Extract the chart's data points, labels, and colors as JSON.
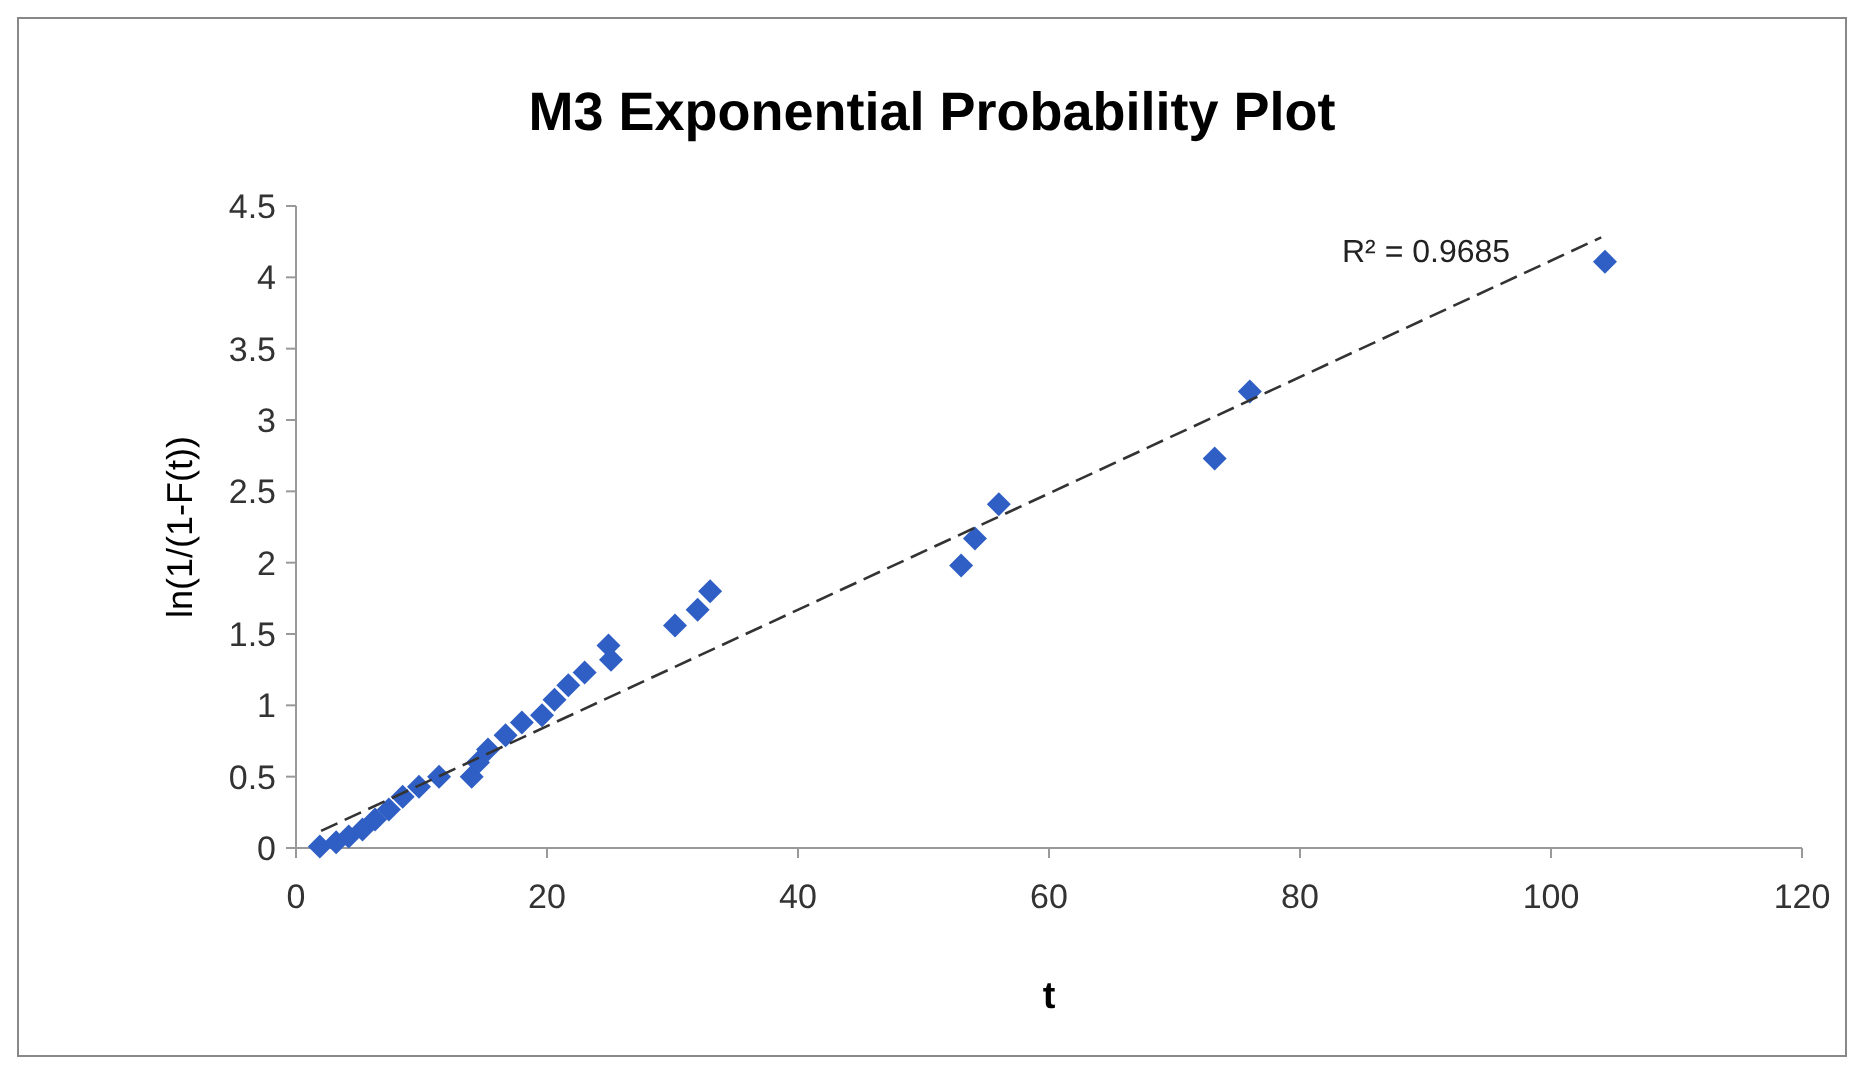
{
  "chart_data": {
    "type": "scatter",
    "title": "M3 Exponential Probability Plot",
    "xlabel": "t",
    "ylabel": "ln(1/(1-F(t))",
    "xlim": [
      0,
      120
    ],
    "xticks": [
      0,
      20,
      40,
      60,
      80,
      100,
      120
    ],
    "ylim": [
      0,
      4.5
    ],
    "yticks": [
      0,
      0.5,
      1,
      1.5,
      2,
      2.5,
      3,
      3.5,
      4,
      4.5
    ],
    "grid": false,
    "marker": "diamond",
    "series": [
      {
        "color": "#2f5fc4",
        "x": [
          1.9,
          3.2,
          4.2,
          5.3,
          6.3,
          7.4,
          8.5,
          9.8,
          11.4,
          14,
          14.5,
          15.3,
          16.7,
          18,
          19.6,
          20.6,
          21.7,
          23,
          24.9,
          25.1,
          30.2,
          32,
          33,
          53,
          54.1,
          56,
          73.2,
          76,
          104.3
        ],
        "values": [
          0.01,
          0.04,
          0.08,
          0.13,
          0.2,
          0.27,
          0.36,
          0.43,
          0.5,
          0.5,
          0.6,
          0.69,
          0.79,
          0.88,
          0.93,
          1.04,
          1.14,
          1.23,
          1.42,
          1.32,
          1.56,
          1.67,
          1.8,
          1.98,
          2.17,
          2.41,
          2.73,
          3.2,
          4.11
        ]
      },
      {
        "type": "line",
        "color": "#333333",
        "line_style": "dashed",
        "marker": "none",
        "x": [
          2,
          104
        ],
        "values": [
          0.12,
          4.28
        ]
      }
    ],
    "annotations": [
      "R² = 0.9685"
    ]
  }
}
